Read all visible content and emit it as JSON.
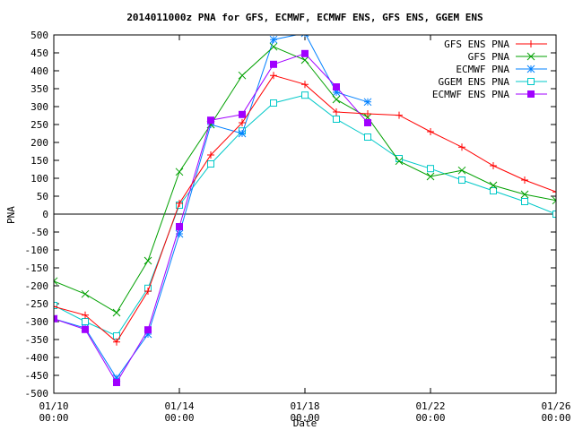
{
  "chart_data": {
    "type": "line",
    "title": "2014011000z PNA for GFS, ECMWF, ECMWF ENS, GFS ENS, GGEM ENS",
    "xlabel": "Date",
    "ylabel": "PNA",
    "xlim": [
      "2014-01-10T00:00",
      "2014-01-26T00:00"
    ],
    "ylim": [
      -500,
      500
    ],
    "x_ticks": [
      {
        "date": "2014-01-10T00:00",
        "line1": "01/10",
        "line2": "00:00"
      },
      {
        "date": "2014-01-14T00:00",
        "line1": "01/14",
        "line2": "00:00"
      },
      {
        "date": "2014-01-18T00:00",
        "line1": "01/18",
        "line2": "00:00"
      },
      {
        "date": "2014-01-22T00:00",
        "line1": "01/22",
        "line2": "00:00"
      },
      {
        "date": "2014-01-26T00:00",
        "line1": "01/26",
        "line2": "00:00"
      }
    ],
    "y_ticks": [
      500,
      450,
      400,
      350,
      300,
      250,
      200,
      150,
      100,
      50,
      0,
      -50,
      -100,
      -150,
      -200,
      -250,
      -300,
      -350,
      -400,
      -450,
      -500
    ],
    "grid": false,
    "legend_position": "top-right",
    "zero_line": true,
    "series": [
      {
        "name": "GFS ENS PNA",
        "color": "#ff0000",
        "marker": "plus",
        "x": [
          "2014-01-10T00:00",
          "2014-01-11T00:00",
          "2014-01-12T00:00",
          "2014-01-13T00:00",
          "2014-01-14T00:00",
          "2014-01-15T00:00",
          "2014-01-16T00:00",
          "2014-01-17T00:00",
          "2014-01-18T00:00",
          "2014-01-19T00:00",
          "2014-01-20T00:00",
          "2014-01-21T00:00",
          "2014-01-22T00:00",
          "2014-01-23T00:00",
          "2014-01-24T00:00",
          "2014-01-25T00:00",
          "2014-01-26T00:00"
        ],
        "values": [
          -258,
          -282,
          -357,
          -215,
          30,
          165,
          255,
          387,
          362,
          285,
          280,
          276,
          230,
          187,
          135,
          95,
          62
        ]
      },
      {
        "name": "GFS PNA",
        "color": "#00a000",
        "marker": "cross",
        "x": [
          "2014-01-10T00:00",
          "2014-01-11T00:00",
          "2014-01-12T00:00",
          "2014-01-13T00:00",
          "2014-01-14T00:00",
          "2014-01-15T00:00",
          "2014-01-16T00:00",
          "2014-01-17T00:00",
          "2014-01-18T00:00",
          "2014-01-19T00:00",
          "2014-01-20T00:00",
          "2014-01-21T00:00",
          "2014-01-22T00:00",
          "2014-01-23T00:00",
          "2014-01-24T00:00",
          "2014-01-25T00:00",
          "2014-01-26T00:00"
        ],
        "values": [
          -187,
          -223,
          -275,
          -130,
          118,
          250,
          387,
          467,
          430,
          320,
          270,
          148,
          105,
          122,
          80,
          55,
          38
        ]
      },
      {
        "name": "ECMWF PNA",
        "color": "#0080ff",
        "marker": "star",
        "x": [
          "2014-01-10T00:00",
          "2014-01-11T00:00",
          "2014-01-12T00:00",
          "2014-01-13T00:00",
          "2014-01-14T00:00",
          "2014-01-15T00:00",
          "2014-01-16T00:00",
          "2014-01-17T00:00",
          "2014-01-18T00:00",
          "2014-01-19T00:00",
          "2014-01-20T00:00"
        ],
        "values": [
          -292,
          -318,
          -458,
          -335,
          -55,
          250,
          225,
          487,
          505,
          340,
          313
        ]
      },
      {
        "name": "GGEM ENS PNA",
        "color": "#00c8c8",
        "marker": "open-square",
        "x": [
          "2014-01-10T00:00",
          "2014-01-11T00:00",
          "2014-01-12T00:00",
          "2014-01-13T00:00",
          "2014-01-14T00:00",
          "2014-01-15T00:00",
          "2014-01-16T00:00",
          "2014-01-17T00:00",
          "2014-01-18T00:00",
          "2014-01-19T00:00",
          "2014-01-20T00:00",
          "2014-01-21T00:00",
          "2014-01-22T00:00",
          "2014-01-23T00:00",
          "2014-01-24T00:00",
          "2014-01-25T00:00",
          "2014-01-26T00:00"
        ],
        "values": [
          -255,
          -300,
          -340,
          -207,
          25,
          140,
          232,
          310,
          332,
          265,
          215,
          155,
          127,
          95,
          65,
          35,
          0
        ]
      },
      {
        "name": "ECMWF ENS PNA",
        "color": "#a000ff",
        "marker": "filled-square",
        "x": [
          "2014-01-10T00:00",
          "2014-01-11T00:00",
          "2014-01-12T00:00",
          "2014-01-13T00:00",
          "2014-01-14T00:00",
          "2014-01-15T00:00",
          "2014-01-16T00:00",
          "2014-01-17T00:00",
          "2014-01-18T00:00",
          "2014-01-19T00:00",
          "2014-01-20T00:00"
        ],
        "values": [
          -292,
          -322,
          -470,
          -323,
          -35,
          262,
          278,
          418,
          448,
          355,
          255
        ]
      }
    ]
  }
}
